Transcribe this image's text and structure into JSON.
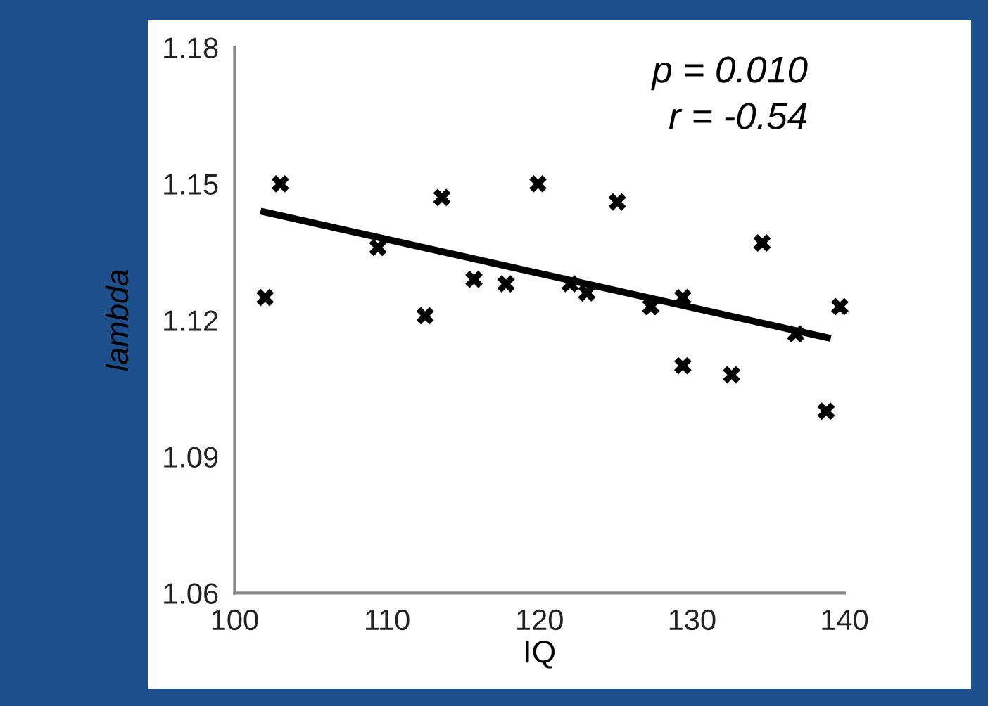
{
  "chart_data": {
    "type": "scatter",
    "xlabel": "IQ",
    "ylabel": "lambda",
    "annotations": [
      "p = 0.010",
      "r = -0.54"
    ],
    "xlim": [
      100,
      140
    ],
    "xticks": [
      100,
      110,
      120,
      130,
      140
    ],
    "ylim": [
      1.06,
      1.18
    ],
    "yticks": [
      1.06,
      1.09,
      1.12,
      1.15,
      1.18
    ],
    "grid": false,
    "legend": false,
    "marker": "cross",
    "series": [
      {
        "type": "scatter",
        "color": "#000000",
        "x": [
          102.0,
          103.0,
          109.4,
          112.5,
          113.6,
          115.7,
          117.8,
          119.9,
          122.0,
          123.1,
          125.1,
          127.3,
          129.4,
          129.4,
          132.6,
          134.6,
          136.8,
          138.8,
          139.7
        ],
        "values": [
          1.125,
          1.15,
          1.136,
          1.121,
          1.147,
          1.129,
          1.128,
          1.15,
          1.128,
          1.126,
          1.146,
          1.123,
          1.125,
          1.11,
          1.108,
          1.137,
          1.117,
          1.1,
          1.123
        ]
      },
      {
        "type": "line",
        "color": "#000000",
        "line_style": "solid",
        "marker": "none",
        "x": [
          101.7,
          139.1
        ],
        "values": [
          1.144,
          1.116
        ]
      }
    ]
  }
}
